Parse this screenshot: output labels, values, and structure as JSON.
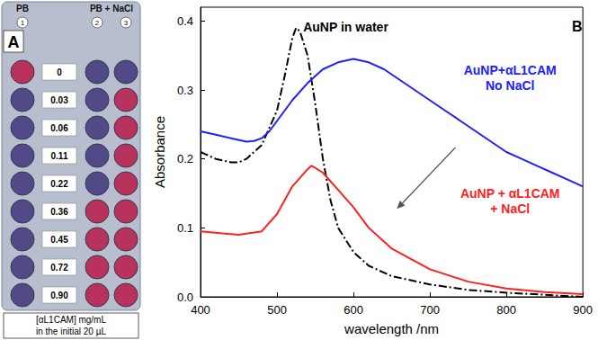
{
  "panel_a": {
    "panel_label": "A",
    "column_groups": [
      {
        "text": "PB",
        "columns": [
          1
        ]
      },
      {
        "text": "PB + NaCl",
        "columns": [
          2,
          3
        ]
      }
    ],
    "columns": [
      1,
      2,
      3
    ],
    "rows": [
      {
        "label": "0",
        "colors": [
          "#b8325e",
          "#524a88",
          "#524a88"
        ]
      },
      {
        "label": "0.03",
        "colors": [
          "#524a88",
          "#524a88",
          "#b8325e"
        ]
      },
      {
        "label": "0.06",
        "colors": [
          "#524a88",
          "#524a88",
          "#b8325e"
        ]
      },
      {
        "label": "0.11",
        "colors": [
          "#524a88",
          "#524a88",
          "#b8325e"
        ]
      },
      {
        "label": "0.22",
        "colors": [
          "#524a88",
          "#524a88",
          "#b8325e"
        ]
      },
      {
        "label": "0.36",
        "colors": [
          "#524a88",
          "#b8325e",
          "#b8325e"
        ]
      },
      {
        "label": "0.45",
        "colors": [
          "#524a88",
          "#b8325e",
          "#b8325e"
        ]
      },
      {
        "label": "0.72",
        "colors": [
          "#524a88",
          "#b8325e",
          "#b8325e"
        ]
      },
      {
        "label": "0.90",
        "colors": [
          "#524a88",
          "#b8325e",
          "#b8325e"
        ]
      }
    ],
    "caption": "[αL1CAM] mg/mL\nin the initial 20 µL"
  },
  "chart_data": {
    "type": "line",
    "panel_label": "B",
    "x_label": "wavelength /nm",
    "y_label": "Absorbance",
    "xlim": [
      400,
      900
    ],
    "xticks": [
      400,
      500,
      600,
      700,
      800,
      900
    ],
    "ylim": [
      0,
      0.42
    ],
    "yticks": [
      {
        "value": 0,
        "label": "0.0"
      },
      0.1,
      0.2,
      0.3,
      0.4
    ],
    "grid": false,
    "annotations": [
      {
        "text": "AuNP in water",
        "color": "#000000"
      },
      {
        "text": "AuNP+αL1CAM\nNo NaCl",
        "color": "#2020ff"
      },
      {
        "text": "AuNP + αL1CAM\n+ NaCl",
        "color": "#ff2020"
      }
    ],
    "series": [
      {
        "color": "#000000",
        "line_style": "dashdot",
        "x": [
          400,
          420,
          440,
          450,
          460,
          480,
          500,
          510,
          520,
          525,
          530,
          540,
          550,
          560,
          570,
          580,
          600,
          620,
          650,
          700,
          750,
          800,
          850,
          900
        ],
        "values": [
          0.21,
          0.2,
          0.195,
          0.195,
          0.2,
          0.22,
          0.27,
          0.32,
          0.375,
          0.39,
          0.385,
          0.35,
          0.28,
          0.2,
          0.14,
          0.1,
          0.065,
          0.045,
          0.03,
          0.018,
          0.01,
          0.006,
          0.003,
          0.0
        ]
      },
      {
        "color": "#2020ff",
        "line_style": "solid",
        "x": [
          400,
          420,
          440,
          460,
          470,
          480,
          490,
          500,
          520,
          540,
          560,
          580,
          600,
          620,
          640,
          660,
          680,
          700,
          720,
          740,
          760,
          780,
          800,
          820,
          840,
          860,
          880,
          900
        ],
        "values": [
          0.24,
          0.235,
          0.23,
          0.225,
          0.226,
          0.23,
          0.24,
          0.255,
          0.285,
          0.31,
          0.33,
          0.34,
          0.345,
          0.34,
          0.33,
          0.315,
          0.3,
          0.285,
          0.27,
          0.255,
          0.24,
          0.225,
          0.21,
          0.2,
          0.19,
          0.18,
          0.17,
          0.16
        ]
      },
      {
        "color": "#ff2020",
        "line_style": "solid",
        "x": [
          400,
          450,
          480,
          500,
          520,
          540,
          545,
          550,
          560,
          580,
          600,
          620,
          650,
          700,
          750,
          800,
          850,
          900
        ],
        "values": [
          0.095,
          0.09,
          0.095,
          0.12,
          0.16,
          0.185,
          0.19,
          0.187,
          0.18,
          0.155,
          0.13,
          0.1,
          0.07,
          0.04,
          0.022,
          0.012,
          0.007,
          0.004
        ]
      }
    ]
  }
}
